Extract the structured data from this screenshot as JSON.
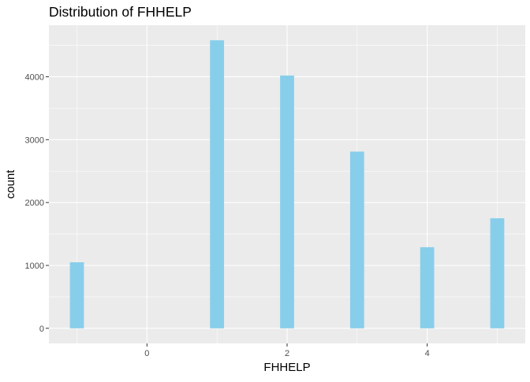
{
  "chart_data": {
    "type": "bar",
    "title": "Distribution of FHHELP",
    "xlabel": "FHHELP",
    "ylabel": "count",
    "x": [
      -1,
      1,
      2,
      3,
      4,
      5
    ],
    "values": [
      1050,
      4580,
      4020,
      2810,
      1290,
      1750
    ],
    "bar_width": 0.2,
    "xlim": [
      -1.4,
      5.4
    ],
    "ylim": [
      -240,
      4820
    ],
    "x_ticks": [
      0,
      2,
      4
    ],
    "x_tick_labels": [
      "0",
      "2",
      "4"
    ],
    "y_ticks": [
      0,
      1000,
      2000,
      3000,
      4000
    ],
    "y_tick_labels": [
      "0",
      "1000",
      "2000",
      "3000",
      "4000"
    ],
    "grid": true,
    "legend": "none",
    "colors": {
      "bar": "#87CEEB",
      "panel": "#EBEBEB",
      "grid_major": "#FFFFFF",
      "axis_text": "#4D4D4D",
      "title_text": "#000000"
    }
  }
}
